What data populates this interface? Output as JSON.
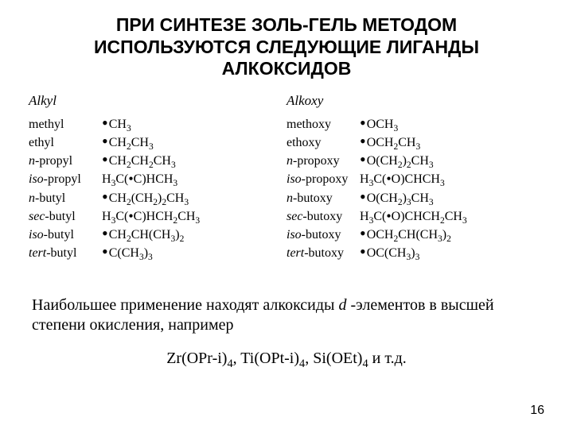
{
  "title": "ПРИ СИНТЕЗЕ ЗОЛЬ-ГЕЛЬ МЕТОДОМ ИСПОЛЬЗУЮТСЯ СЛЕДУЮЩИЕ ЛИГАНДЫ АЛКОКСИДОВ",
  "left": {
    "header": "Alkyl",
    "rows": [
      {
        "name": "methyl",
        "italic": false,
        "formula_html": "<span class='dot'>•</span>CH<sub>3</sub>"
      },
      {
        "name": "ethyl",
        "italic": false,
        "formula_html": "<span class='dot'>•</span>CH<sub>2</sub>CH<sub>3</sub>"
      },
      {
        "name": "propyl",
        "prefix": "n-",
        "italic": true,
        "formula_html": "<span class='dot'>•</span>CH<sub>2</sub>CH<sub>2</sub>CH<sub>3</sub>"
      },
      {
        "name": "propyl",
        "prefix": "iso-",
        "italic": true,
        "formula_html": "H<sub>3</sub>C(<span class='sm-dot'>•</span>C)HCH<sub>3</sub>"
      },
      {
        "name": "butyl",
        "prefix": "n-",
        "italic": true,
        "formula_html": "<span class='dot'>•</span>CH<sub>2</sub>(CH<sub>2</sub>)<sub>2</sub>CH<sub>3</sub>"
      },
      {
        "name": "butyl",
        "prefix": "sec-",
        "italic": true,
        "formula_html": "H<sub>3</sub>C(<span class='sm-dot'>•</span>C)HCH<sub>2</sub>CH<sub>3</sub>"
      },
      {
        "name": "butyl",
        "prefix": "iso-",
        "italic": true,
        "formula_html": "<span class='dot'>•</span>CH<sub>2</sub>CH(CH<sub>3</sub>)<sub>2</sub>"
      },
      {
        "name": "butyl",
        "prefix": "tert-",
        "italic": true,
        "formula_html": "<span class='dot'>•</span>C(CH<sub>3</sub>)<sub>3</sub>"
      }
    ]
  },
  "right": {
    "header": "Alkoxy",
    "rows": [
      {
        "name": "methoxy",
        "italic": false,
        "formula_html": "<span class='dot'>•</span>OCH<sub>3</sub>"
      },
      {
        "name": "ethoxy",
        "italic": false,
        "formula_html": "<span class='dot'>•</span>OCH<sub>2</sub>CH<sub>3</sub>"
      },
      {
        "name": "propoxy",
        "prefix": "n-",
        "italic": true,
        "formula_html": "<span class='dot'>•</span>O(CH<sub>2</sub>)<sub>2</sub>CH<sub>3</sub>"
      },
      {
        "name": "propoxy",
        "prefix": "iso-",
        "italic": true,
        "formula_html": "H<sub>3</sub>C(<span class='sm-dot'>•</span>O)CHCH<sub>3</sub>"
      },
      {
        "name": "butoxy",
        "prefix": "n-",
        "italic": true,
        "formula_html": "<span class='dot'>•</span>O(CH<sub>2</sub>)<sub>3</sub>CH<sub>3</sub>"
      },
      {
        "name": "butoxy",
        "prefix": "sec-",
        "italic": true,
        "formula_html": "H<sub>3</sub>C(<span class='sm-dot'>•</span>O)CHCH<sub>2</sub>CH<sub>3</sub>"
      },
      {
        "name": "butoxy",
        "prefix": "iso-",
        "italic": true,
        "formula_html": "<span class='dot'>•</span>OCH<sub>2</sub>CH(CH<sub>3</sub>)<sub>2</sub>"
      },
      {
        "name": "butoxy",
        "prefix": "tert-",
        "italic": true,
        "formula_html": "<span class='dot'>•</span>OC(CH<sub>3</sub>)<sub>3</sub>"
      }
    ]
  },
  "bottom1": "Наибольшее применение находят алкоксиды ",
  "bottom_d": "d ",
  "bottom2": "-элементов в высшей степени окисления, например",
  "formula_line_html": "Zr(OPr-i)<sub>4</sub>, Ti(OPt-i)<sub>4</sub>, Si(OEt)<sub>4</sub> и т.д.",
  "page": "16"
}
